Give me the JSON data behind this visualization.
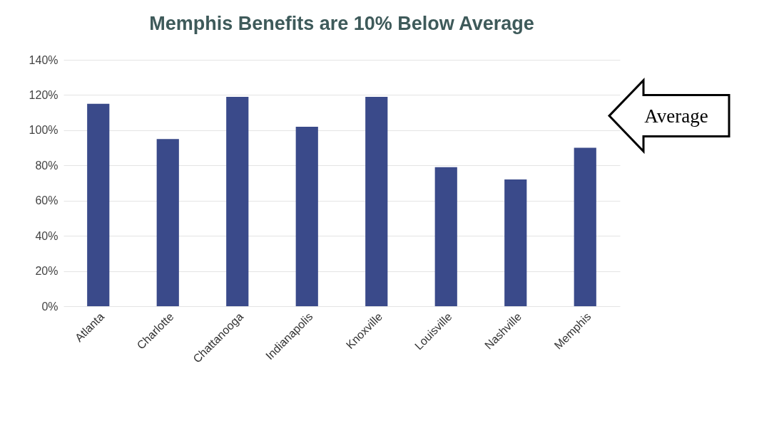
{
  "chart_data": {
    "type": "bar",
    "title": "Memphis Benefits are 10% Below Average",
    "categories": [
      "Atlanta",
      "Charlotte",
      "Chattanooga",
      "Indianapolis",
      "Knoxville",
      "Louisville",
      "Nashville",
      "Memphis"
    ],
    "values": [
      115,
      95,
      119,
      102,
      119,
      79,
      72,
      90
    ],
    "color": "#3a4a8a",
    "ylim": [
      0,
      140
    ],
    "yticks": [
      {
        "value": 0,
        "label": "0%"
      },
      {
        "value": 20,
        "label": "20%"
      },
      {
        "value": 40,
        "label": "40%"
      },
      {
        "value": 60,
        "label": "60%"
      },
      {
        "value": 80,
        "label": "80%"
      },
      {
        "value": 100,
        "label": "100%"
      },
      {
        "value": 120,
        "label": "120%"
      },
      {
        "value": 140,
        "label": "140%"
      }
    ],
    "grid": "y",
    "annotations": [
      "Average"
    ]
  }
}
